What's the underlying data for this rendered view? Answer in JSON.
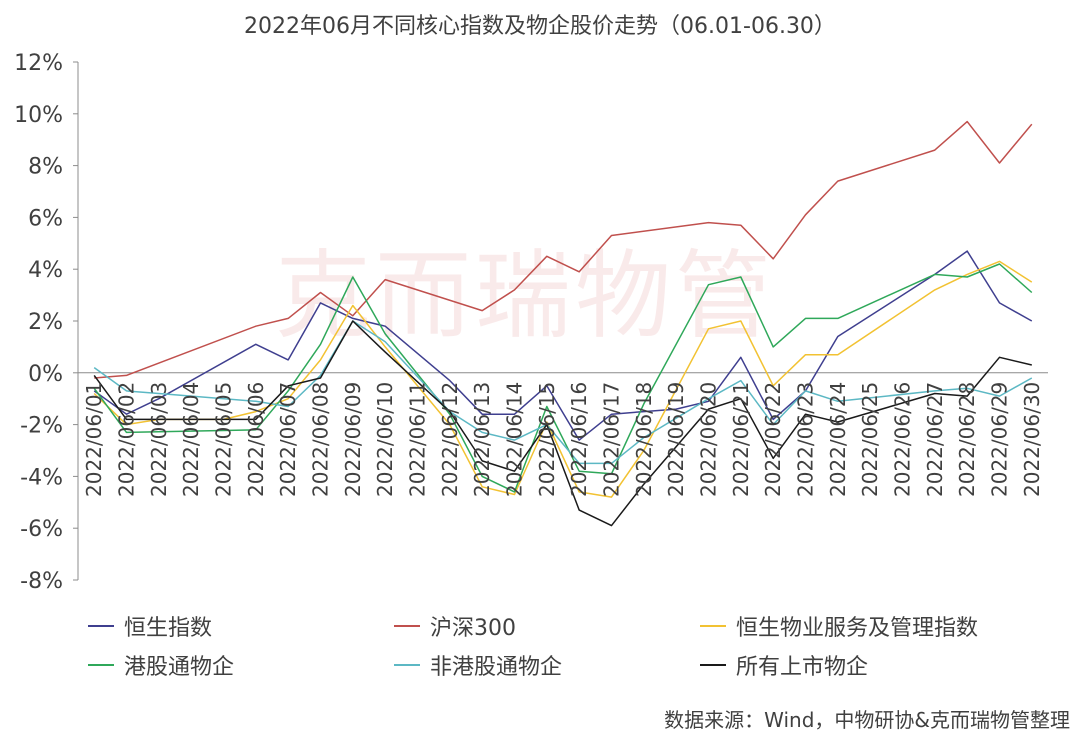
{
  "chart_data": {
    "type": "line",
    "title": "2022年06月不同核心指数及物企股价走势（06.01-06.30）",
    "x": [
      "2022/06/01",
      "2022/06/02",
      "2022/06/03",
      "2022/06/04",
      "2022/06/05",
      "2022/06/06",
      "2022/06/07",
      "2022/06/08",
      "2022/06/09",
      "2022/06/10",
      "2022/06/11",
      "2022/06/12",
      "2022/06/13",
      "2022/06/14",
      "2022/06/15",
      "2022/06/16",
      "2022/06/17",
      "2022/06/18",
      "2022/06/19",
      "2022/06/20",
      "2022/06/21",
      "2022/06/22",
      "2022/06/23",
      "2022/06/24",
      "2022/06/25",
      "2022/06/26",
      "2022/06/27",
      "2022/06/28",
      "2022/06/29",
      "2022/06/30"
    ],
    "ylim": [
      -8,
      12
    ],
    "yticks": [
      "12%",
      "10%",
      "8%",
      "6%",
      "4%",
      "2%",
      "0%",
      "-2%",
      "-4%",
      "-6%",
      "-8%"
    ],
    "grid": false,
    "legend_position": "bottom",
    "series": [
      {
        "name": "恒生指数",
        "color": "#3f3f8f",
        "points": [
          [
            1,
            -0.7
          ],
          [
            2,
            -1.6
          ],
          [
            3,
            -1.0
          ],
          [
            6,
            1.1
          ],
          [
            7,
            0.5
          ],
          [
            8,
            2.7
          ],
          [
            9,
            2.1
          ],
          [
            10,
            1.8
          ],
          [
            12,
            -0.3
          ],
          [
            13,
            -1.6
          ],
          [
            14,
            -1.6
          ],
          [
            15,
            -0.5
          ],
          [
            16,
            -2.6
          ],
          [
            17,
            -1.6
          ],
          [
            18,
            -1.5
          ],
          [
            19,
            -1.4
          ],
          [
            20,
            -1.1
          ],
          [
            21,
            0.6
          ],
          [
            22,
            -1.8
          ],
          [
            23,
            -0.7
          ],
          [
            24,
            1.4
          ],
          [
            27,
            3.8
          ],
          [
            28,
            4.7
          ],
          [
            29,
            2.7
          ],
          [
            30,
            2.0
          ]
        ]
      },
      {
        "name": "沪深300",
        "color": "#c0504d",
        "points": [
          [
            1,
            -0.2
          ],
          [
            2,
            -0.1
          ],
          [
            6,
            1.8
          ],
          [
            7,
            2.1
          ],
          [
            8,
            3.1
          ],
          [
            9,
            2.2
          ],
          [
            10,
            3.6
          ],
          [
            13,
            2.4
          ],
          [
            14,
            3.2
          ],
          [
            15,
            4.5
          ],
          [
            16,
            3.9
          ],
          [
            17,
            5.3
          ],
          [
            20,
            5.8
          ],
          [
            21,
            5.7
          ],
          [
            22,
            4.4
          ],
          [
            23,
            6.1
          ],
          [
            24,
            7.4
          ],
          [
            27,
            8.6
          ],
          [
            28,
            9.7
          ],
          [
            29,
            8.1
          ],
          [
            30,
            9.6
          ]
        ]
      },
      {
        "name": "恒生物业服务及管理指数",
        "color": "#f2c232",
        "points": [
          [
            1,
            -0.8
          ],
          [
            2,
            -2.0
          ],
          [
            3,
            -1.8
          ],
          [
            5,
            -1.8
          ],
          [
            6,
            -1.5
          ],
          [
            7,
            -1.0
          ],
          [
            8,
            0.5
          ],
          [
            9,
            2.6
          ],
          [
            10,
            1.0
          ],
          [
            12,
            -2.0
          ],
          [
            13,
            -4.4
          ],
          [
            14,
            -4.7
          ],
          [
            15,
            -1.9
          ],
          [
            16,
            -4.6
          ],
          [
            17,
            -4.8
          ],
          [
            18,
            -3.0
          ],
          [
            20,
            1.7
          ],
          [
            21,
            2.0
          ],
          [
            22,
            -0.5
          ],
          [
            23,
            0.7
          ],
          [
            24,
            0.7
          ],
          [
            27,
            3.2
          ],
          [
            28,
            3.8
          ],
          [
            29,
            4.3
          ],
          [
            30,
            3.5
          ]
        ]
      },
      {
        "name": "港股通物企",
        "color": "#2fa85a",
        "points": [
          [
            1,
            -0.6
          ],
          [
            2,
            -2.3
          ],
          [
            6,
            -2.2
          ],
          [
            7,
            -0.7
          ],
          [
            8,
            1.1
          ],
          [
            9,
            3.7
          ],
          [
            10,
            1.5
          ],
          [
            12,
            -1.6
          ],
          [
            13,
            -4.0
          ],
          [
            14,
            -4.6
          ],
          [
            15,
            -1.3
          ],
          [
            16,
            -3.8
          ],
          [
            17,
            -3.9
          ],
          [
            18,
            -1.2
          ],
          [
            20,
            3.4
          ],
          [
            21,
            3.7
          ],
          [
            22,
            1.0
          ],
          [
            23,
            2.1
          ],
          [
            24,
            2.1
          ],
          [
            27,
            3.8
          ],
          [
            28,
            3.7
          ],
          [
            29,
            4.2
          ],
          [
            30,
            3.1
          ]
        ]
      },
      {
        "name": "非港股通物企",
        "color": "#5cb8c4",
        "points": [
          [
            1,
            0.2
          ],
          [
            2,
            -0.7
          ],
          [
            3,
            -0.8
          ],
          [
            6,
            -1.1
          ],
          [
            7,
            -1.3
          ],
          [
            8,
            -0.1
          ],
          [
            9,
            2.0
          ],
          [
            10,
            1.2
          ],
          [
            12,
            -1.5
          ],
          [
            13,
            -2.3
          ],
          [
            14,
            -2.6
          ],
          [
            15,
            -2.0
          ],
          [
            16,
            -3.5
          ],
          [
            17,
            -3.5
          ],
          [
            18,
            -2.5
          ],
          [
            20,
            -1.0
          ],
          [
            21,
            -0.3
          ],
          [
            22,
            -2.0
          ],
          [
            23,
            -0.7
          ],
          [
            24,
            -1.1
          ],
          [
            27,
            -0.7
          ],
          [
            28,
            -0.6
          ],
          [
            29,
            -0.9
          ],
          [
            30,
            -0.2
          ]
        ]
      },
      {
        "name": "所有上市物企",
        "color": "#1a1a1a",
        "points": [
          [
            1,
            -0.1
          ],
          [
            2,
            -1.8
          ],
          [
            6,
            -1.8
          ],
          [
            7,
            -0.5
          ],
          [
            8,
            -0.2
          ],
          [
            9,
            2.0
          ],
          [
            10,
            0.8
          ],
          [
            12,
            -1.5
          ],
          [
            13,
            -3.4
          ],
          [
            14,
            -3.8
          ],
          [
            15,
            -2.0
          ],
          [
            16,
            -5.3
          ],
          [
            17,
            -5.9
          ],
          [
            18,
            -4.3
          ],
          [
            20,
            -1.4
          ],
          [
            21,
            -1.0
          ],
          [
            22,
            -3.3
          ],
          [
            23,
            -1.6
          ],
          [
            24,
            -1.9
          ],
          [
            27,
            -0.8
          ],
          [
            28,
            -0.9
          ],
          [
            29,
            0.6
          ],
          [
            30,
            0.3
          ]
        ]
      }
    ]
  },
  "footer": {
    "source": "数据来源：Wind，中物研协&克而瑞物管整理",
    "watermark": "克而瑞物管"
  }
}
